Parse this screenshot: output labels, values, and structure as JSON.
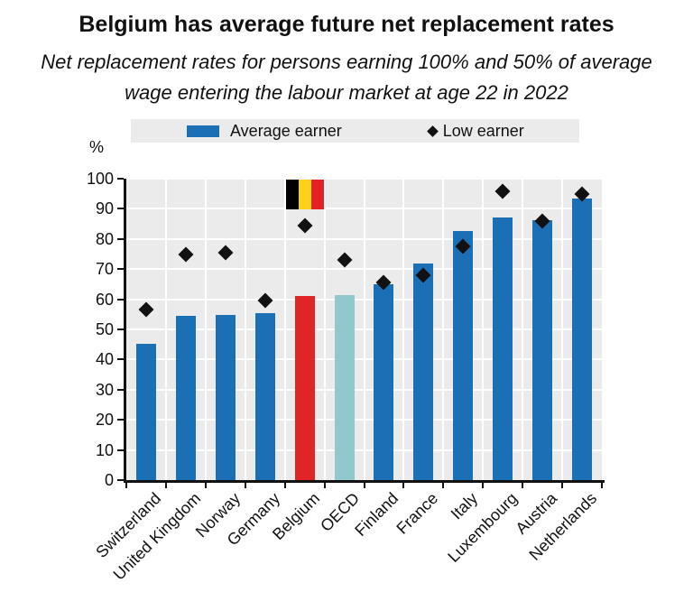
{
  "title": "Belgium has average future net replacement rates",
  "subtitle": "Net replacement rates for persons earning 100% and 50% of average\nwage entering the labour market at age 22 in 2022",
  "legend": {
    "avg_label": "Average earner",
    "low_label": "Low earner"
  },
  "colors": {
    "bar_blue": "#1b6fb5",
    "bar_red": "#e02428",
    "bar_teal": "#90c8ce",
    "diamond_black": "#111111",
    "plot_bg": "#ebebeb",
    "grid_white": "#ffffff",
    "legend_bg": "#ebebeb",
    "text": "#111111",
    "flag_black": "#000000",
    "flag_yellow": "#fcd116",
    "flag_red": "#e32227"
  },
  "chart_data": {
    "type": "bar",
    "categories": [
      "Switzerland",
      "United Kingdom",
      "Norway",
      "Germany",
      "Belgium",
      "OECD",
      "Finland",
      "France",
      "Italy",
      "Luxembourg",
      "Austria",
      "Netherlands"
    ],
    "series": [
      {
        "name": "Average earner",
        "type": "bar",
        "values": [
          45.3,
          54.4,
          54.8,
          55.4,
          61.0,
          61.4,
          65.0,
          71.9,
          82.6,
          87.2,
          86.1,
          93.5
        ],
        "colors": [
          "#1b6fb5",
          "#1b6fb5",
          "#1b6fb5",
          "#1b6fb5",
          "#e02428",
          "#90c8ce",
          "#1b6fb5",
          "#1b6fb5",
          "#1b6fb5",
          "#1b6fb5",
          "#1b6fb5",
          "#1b6fb5"
        ]
      },
      {
        "name": "Low earner",
        "type": "scatter",
        "marker": "diamond",
        "values": [
          56.5,
          75.0,
          75.5,
          59.5,
          84.5,
          73.2,
          65.5,
          68.0,
          77.5,
          95.8,
          86.0,
          95.0
        ]
      }
    ],
    "ylabel": "%",
    "ylim": [
      0,
      100
    ],
    "yticks": [
      0,
      10,
      20,
      30,
      40,
      50,
      60,
      70,
      80,
      90,
      100
    ],
    "grid": "white on light-gray panel, horizontal and vertical",
    "legend_position": "top",
    "annotation": {
      "type": "belgium-flag",
      "category": "Belgium"
    }
  }
}
